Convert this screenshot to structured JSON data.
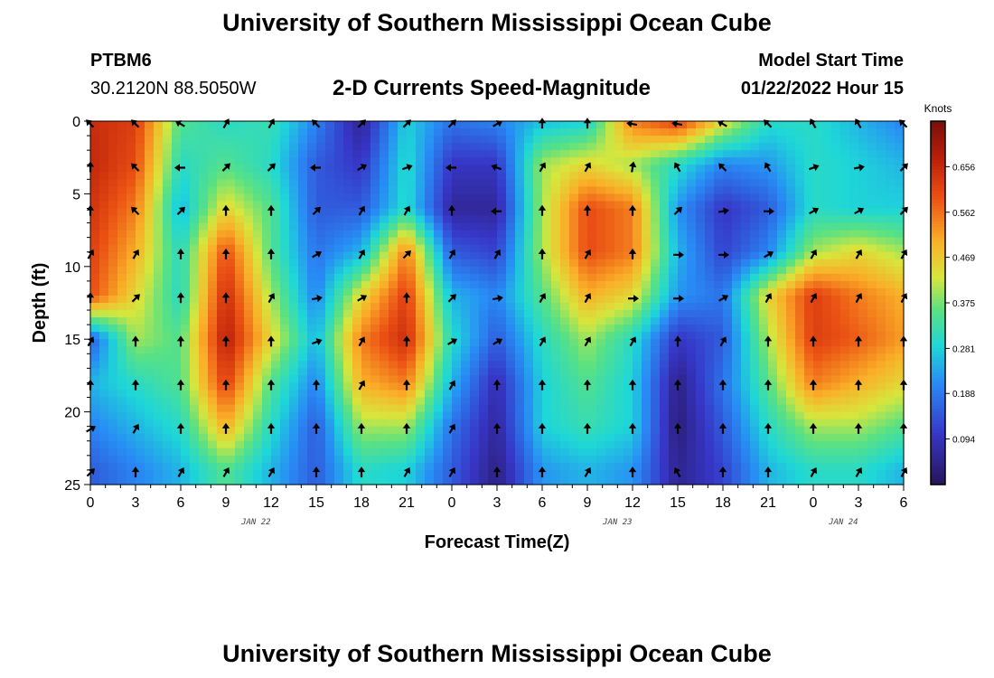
{
  "header": {
    "title": "University of Southern Mississippi Ocean Cube",
    "station": "PTBM6",
    "coords": "30.2120N  88.5050W",
    "subtitle": "2-D Currents Speed-Magnitude",
    "model_label": "Model Start Time",
    "model_time": "01/22/2022 Hour 15"
  },
  "footer": {
    "title": "University of Southern Mississippi Ocean Cube"
  },
  "chart_data": {
    "type": "heatmap",
    "title": "2-D Currents Speed-Magnitude",
    "xlabel": "Forecast Time(Z)",
    "ylabel": "Depth (ft)",
    "x_ticks": [
      "0",
      "3",
      "6",
      "9",
      "12",
      "15",
      "18",
      "21",
      "0",
      "3",
      "6",
      "9",
      "12",
      "15",
      "18",
      "21",
      "0",
      "3",
      "6"
    ],
    "x_range_hours": [
      0,
      54
    ],
    "y_ticks": [
      "0",
      "5",
      "10",
      "15",
      "20",
      "25"
    ],
    "y_range_ft": [
      0,
      25
    ],
    "day_labels": [
      {
        "label": "JAN 22",
        "hour": 11
      },
      {
        "label": "JAN 23",
        "hour": 35
      },
      {
        "label": "JAN 24",
        "hour": 50
      }
    ],
    "colorbar": {
      "label": "Knots",
      "ticks": [
        "0.656",
        "0.562",
        "0.469",
        "0.375",
        "0.281",
        "0.188",
        "0.094"
      ],
      "min": 0.0,
      "max": 0.75
    },
    "depth_rows_ft": [
      0,
      3,
      6,
      9,
      12,
      15,
      18,
      21,
      24
    ],
    "speed_knots_rows": [
      [
        0.65,
        0.62,
        0.35,
        0.3,
        0.32,
        0.2,
        0.05,
        0.28,
        0.18,
        0.2,
        0.26,
        0.28,
        0.55,
        0.62,
        0.45,
        0.3,
        0.3,
        0.25,
        0.2
      ],
      [
        0.66,
        0.6,
        0.3,
        0.35,
        0.3,
        0.15,
        0.1,
        0.3,
        0.1,
        0.1,
        0.4,
        0.45,
        0.4,
        0.3,
        0.2,
        0.22,
        0.3,
        0.28,
        0.25
      ],
      [
        0.64,
        0.55,
        0.25,
        0.45,
        0.35,
        0.15,
        0.15,
        0.3,
        0.06,
        0.06,
        0.4,
        0.6,
        0.55,
        0.22,
        0.1,
        0.15,
        0.3,
        0.28,
        0.28
      ],
      [
        0.62,
        0.5,
        0.3,
        0.6,
        0.35,
        0.18,
        0.25,
        0.55,
        0.15,
        0.12,
        0.4,
        0.6,
        0.55,
        0.25,
        0.12,
        0.2,
        0.4,
        0.45,
        0.4
      ],
      [
        0.6,
        0.45,
        0.3,
        0.65,
        0.4,
        0.2,
        0.45,
        0.62,
        0.25,
        0.2,
        0.35,
        0.5,
        0.45,
        0.22,
        0.18,
        0.45,
        0.62,
        0.55,
        0.5
      ],
      [
        0.15,
        0.4,
        0.35,
        0.68,
        0.45,
        0.25,
        0.55,
        0.65,
        0.3,
        0.15,
        0.3,
        0.4,
        0.3,
        0.1,
        0.15,
        0.4,
        0.62,
        0.58,
        0.52
      ],
      [
        0.25,
        0.3,
        0.35,
        0.62,
        0.35,
        0.2,
        0.5,
        0.55,
        0.25,
        0.08,
        0.28,
        0.35,
        0.28,
        0.04,
        0.18,
        0.35,
        0.55,
        0.5,
        0.45
      ],
      [
        0.2,
        0.25,
        0.3,
        0.5,
        0.3,
        0.15,
        0.4,
        0.4,
        0.18,
        0.06,
        0.28,
        0.32,
        0.28,
        0.03,
        0.15,
        0.3,
        0.4,
        0.4,
        0.35
      ],
      [
        0.15,
        0.2,
        0.25,
        0.35,
        0.25,
        0.15,
        0.3,
        0.28,
        0.15,
        0.04,
        0.22,
        0.25,
        0.22,
        0.05,
        0.12,
        0.25,
        0.3,
        0.3,
        0.25
      ]
    ],
    "arrow_angles_deg": [
      [
        -135,
        -135,
        -150,
        -60,
        -60,
        -135,
        -45,
        -45,
        -45,
        -30,
        -90,
        -90,
        -170,
        -170,
        -150,
        -135,
        -120,
        -120,
        -135
      ],
      [
        -90,
        -135,
        -180,
        -45,
        -45,
        180,
        -30,
        -20,
        180,
        -160,
        -60,
        -60,
        -80,
        -120,
        -135,
        -120,
        -20,
        -10,
        -45
      ],
      [
        -90,
        -135,
        -45,
        -90,
        -90,
        -45,
        -60,
        -60,
        -90,
        180,
        -90,
        -90,
        -90,
        -45,
        -10,
        0,
        -30,
        -30,
        -45
      ],
      [
        -60,
        -60,
        -90,
        -90,
        -90,
        -30,
        -60,
        -45,
        -60,
        -60,
        -90,
        -60,
        -90,
        0,
        0,
        -30,
        -60,
        -60,
        -60
      ],
      [
        -90,
        -45,
        -90,
        -90,
        -60,
        -10,
        -30,
        -90,
        -45,
        -10,
        -60,
        -60,
        0,
        0,
        -30,
        -60,
        -60,
        -60,
        -60
      ],
      [
        -60,
        -90,
        -90,
        -90,
        -90,
        -20,
        -60,
        -90,
        -30,
        -30,
        -60,
        -60,
        -60,
        -90,
        -60,
        -90,
        -90,
        -90,
        -90
      ],
      [
        -90,
        -90,
        -90,
        -90,
        -90,
        -90,
        -60,
        -90,
        -60,
        -90,
        -90,
        -90,
        -90,
        -90,
        -90,
        -90,
        -90,
        -90,
        -90
      ],
      [
        -30,
        -60,
        -90,
        -90,
        -90,
        -90,
        -90,
        -90,
        -60,
        -90,
        -90,
        -90,
        -90,
        -90,
        -90,
        -90,
        -90,
        -90,
        -90
      ],
      [
        -45,
        -90,
        -60,
        -60,
        -60,
        -90,
        -90,
        -60,
        -60,
        -90,
        -90,
        -60,
        -90,
        -120,
        -90,
        -90,
        -60,
        -60,
        -60
      ]
    ]
  }
}
